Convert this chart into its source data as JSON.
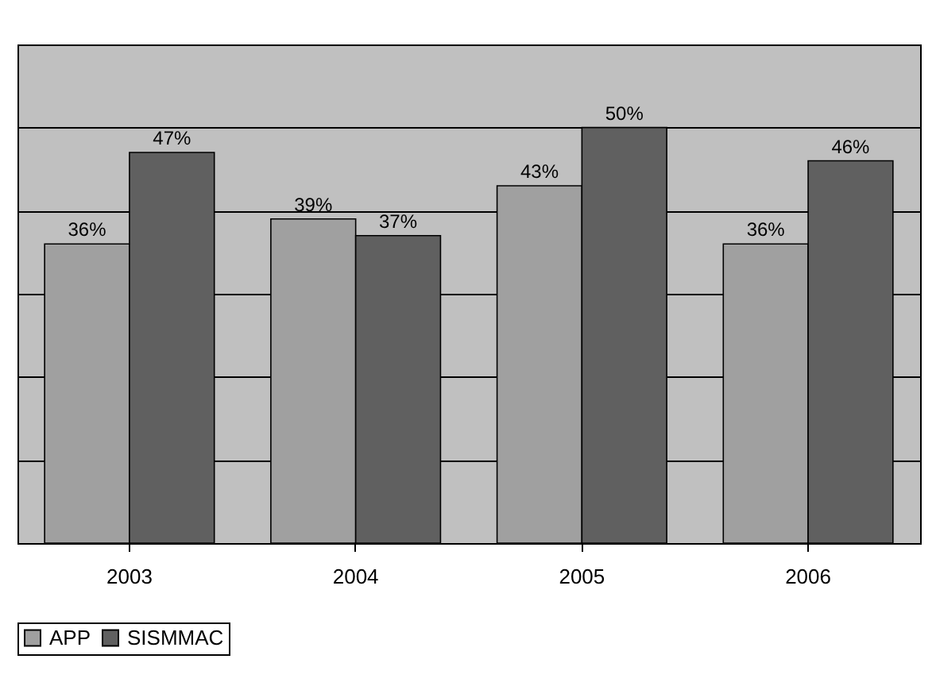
{
  "chart_data": {
    "type": "bar",
    "categories": [
      "2003",
      "2004",
      "2005",
      "2006"
    ],
    "series": [
      {
        "name": "APP",
        "color": "#a0a0a0",
        "values": [
          36,
          39,
          43,
          36
        ],
        "value_labels": [
          "36%",
          "39%",
          "43%",
          "36%"
        ]
      },
      {
        "name": "SISMMAC",
        "color": "#606060",
        "values": [
          47,
          37,
          50,
          46
        ],
        "value_labels": [
          "47%",
          "37%",
          "50%",
          "46%"
        ]
      }
    ],
    "ylim": [
      0,
      60
    ],
    "yticks": [
      {
        "value": 0,
        "label": null
      },
      {
        "value": 10,
        "label": null
      },
      {
        "value": 20,
        "label": null
      },
      {
        "value": 30,
        "label": null
      },
      {
        "value": 40,
        "label": null
      },
      {
        "value": 50,
        "label": null
      },
      {
        "value": 60,
        "label": null
      }
    ],
    "grid": "y",
    "legend": "bottom",
    "tick_labels": "x"
  }
}
